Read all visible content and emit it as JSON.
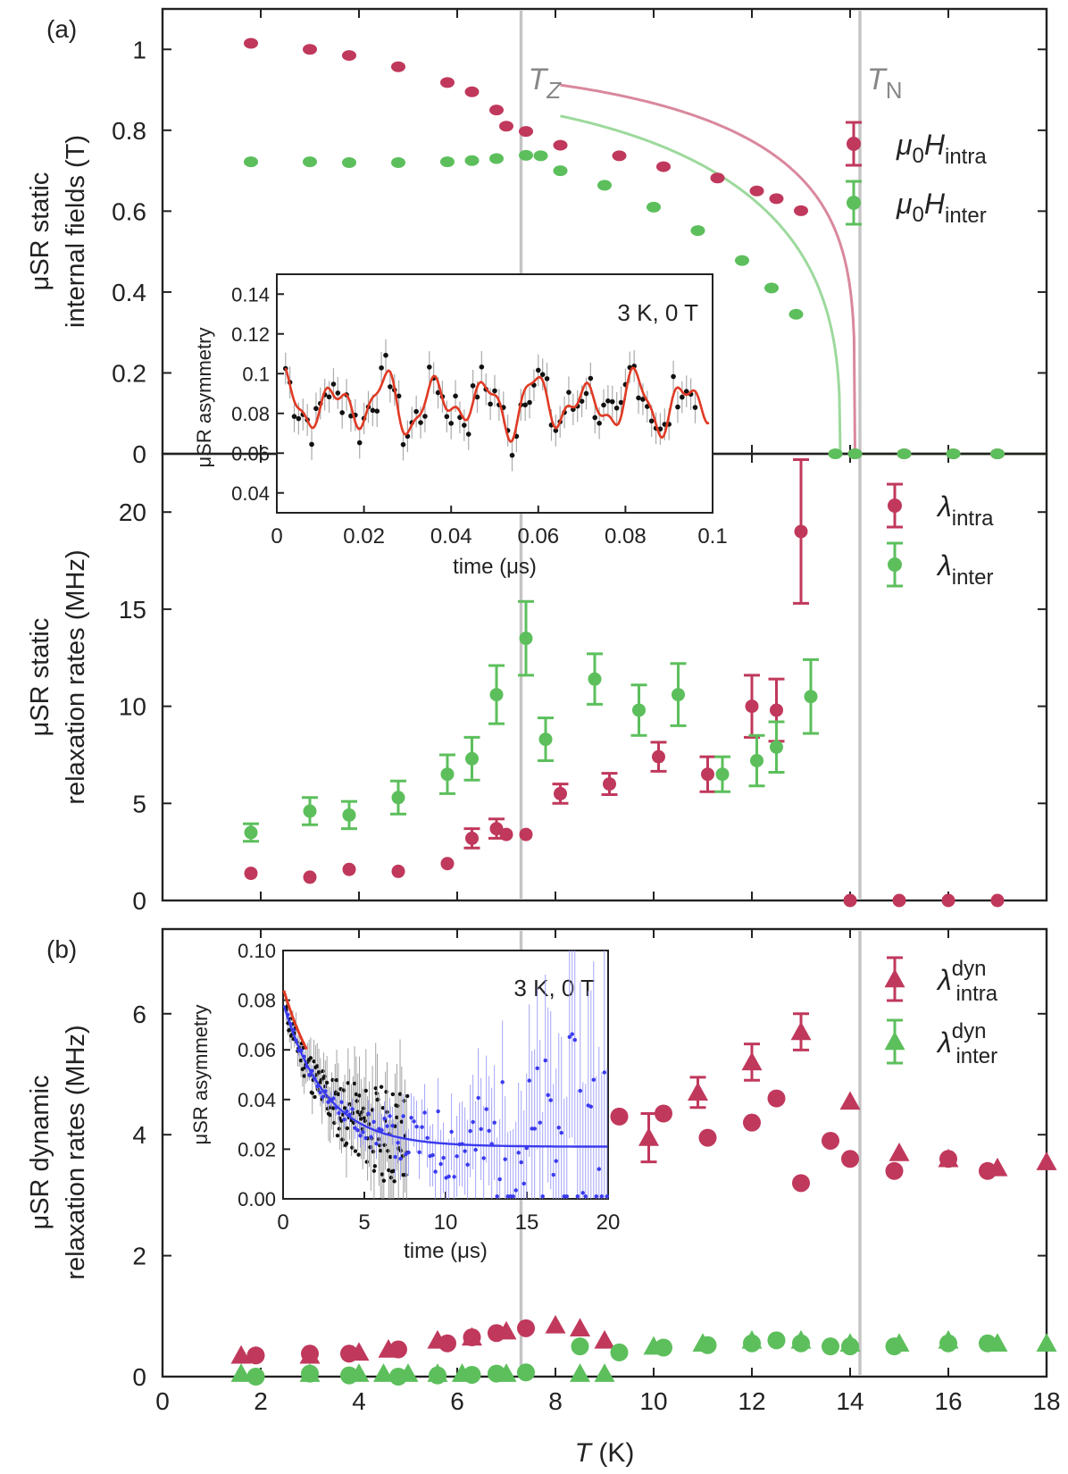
{
  "chart_data": [
    {
      "panel": "a-top",
      "type": "scatter",
      "panel_label": "(a)",
      "ylabel_lines": [
        "μSR static",
        "internal fields (T)"
      ],
      "xlim": [
        0,
        18
      ],
      "ylim": [
        0,
        1.1
      ],
      "yticks": [
        0,
        0.2,
        0.4,
        0.6,
        0.8,
        1
      ],
      "ytick_labels": [
        "0",
        "0.2",
        "0.4",
        "0.6",
        "0.8",
        "1"
      ],
      "vlines": [
        {
          "x": 7.3,
          "label": "T",
          "sub": "Z"
        },
        {
          "x": 14.2,
          "label": "T",
          "sub": "N"
        }
      ],
      "legend": [
        {
          "pre": "μ",
          "sub0": "0",
          "main": "H",
          "sub": "intra",
          "color": "#c0385c"
        },
        {
          "pre": "μ",
          "sub0": "0",
          "main": "H",
          "sub": "inter",
          "color": "#5cbf5c"
        }
      ],
      "series": [
        {
          "name": "μ0H intra",
          "color": "#c0385c",
          "x": [
            1.8,
            3.0,
            3.8,
            4.8,
            5.8,
            6.3,
            6.8,
            7.0,
            7.4,
            8.1,
            9.3,
            10.2,
            11.3,
            12.1,
            12.5,
            13.0,
            14.1,
            15.1,
            16.1,
            17.0
          ],
          "y": [
            1.015,
            1.0,
            0.985,
            0.957,
            0.918,
            0.895,
            0.85,
            0.81,
            0.797,
            0.763,
            0.737,
            0.71,
            0.682,
            0.65,
            0.631,
            0.601,
            0.0,
            0.0,
            0.0,
            0.0
          ]
        },
        {
          "name": "μ0H inter",
          "color": "#5cbf5c",
          "x": [
            1.8,
            3.0,
            3.8,
            4.8,
            5.8,
            6.3,
            6.8,
            7.4,
            7.7,
            8.1,
            9.0,
            10.0,
            10.9,
            11.8,
            12.4,
            12.9,
            13.7,
            14.1,
            15.1,
            16.1,
            17.0
          ],
          "y": [
            0.722,
            0.722,
            0.72,
            0.72,
            0.722,
            0.725,
            0.73,
            0.738,
            0.737,
            0.7,
            0.664,
            0.61,
            0.552,
            0.478,
            0.41,
            0.345,
            0.0,
            0.0,
            0.0,
            0.0,
            0.0
          ]
        }
      ]
    },
    {
      "panel": "a-bottom",
      "type": "scatter",
      "ylabel_lines": [
        "μSR static",
        "relaxation rates (MHz)"
      ],
      "xlim": [
        0,
        18
      ],
      "ylim": [
        0,
        23
      ],
      "yticks": [
        0,
        5,
        10,
        15,
        20
      ],
      "ytick_labels": [
        "0",
        "5",
        "10",
        "15",
        "20"
      ],
      "legend": [
        {
          "pre": "λ",
          "sub": "intra",
          "color": "#c0385c"
        },
        {
          "pre": "λ",
          "sub": "inter",
          "color": "#5cbf5c"
        }
      ],
      "series": [
        {
          "name": "λ intra",
          "color": "#c0385c",
          "x": [
            1.8,
            3.0,
            3.8,
            4.8,
            5.8,
            6.3,
            6.8,
            7.0,
            7.4,
            8.1,
            9.1,
            10.1,
            11.1,
            12.0,
            12.5,
            13.0,
            14.0,
            15.0,
            16.0,
            17.0
          ],
          "y": [
            1.4,
            1.2,
            1.6,
            1.5,
            1.9,
            3.2,
            3.7,
            3.4,
            3.4,
            5.5,
            6.0,
            7.4,
            6.5,
            10.0,
            9.8,
            19.0,
            0.0,
            0.0,
            0.0,
            0.0
          ],
          "err": [
            0.25,
            0.25,
            0.25,
            0.25,
            0.25,
            0.5,
            0.5,
            0.3,
            0.3,
            0.5,
            0.55,
            0.75,
            0.9,
            1.6,
            1.6,
            3.7,
            0,
            0,
            0,
            0
          ]
        },
        {
          "name": "λ inter",
          "color": "#5cbf5c",
          "x": [
            1.8,
            3.0,
            3.8,
            4.8,
            5.8,
            6.3,
            6.8,
            7.4,
            7.8,
            8.8,
            9.7,
            10.5,
            11.4,
            12.1,
            12.5,
            13.2
          ],
          "y": [
            3.5,
            4.6,
            4.4,
            5.3,
            6.5,
            7.3,
            10.6,
            13.5,
            8.3,
            11.4,
            9.8,
            10.6,
            6.5,
            7.2,
            7.9,
            10.5
          ],
          "err": [
            0.45,
            0.7,
            0.7,
            0.85,
            1.0,
            1.1,
            1.5,
            1.9,
            1.1,
            1.3,
            1.3,
            1.6,
            0.9,
            1.3,
            1.3,
            1.9
          ]
        }
      ],
      "inset": {
        "label": "3 K, 0 T",
        "xlabel": "time (μs)",
        "ylabel": "μSR asymmetry",
        "xlim": [
          0,
          0.1
        ],
        "ylim": [
          0.03,
          0.15
        ],
        "xticks": [
          0,
          0.02,
          0.04,
          0.06,
          0.08,
          0.1
        ],
        "xtick_labels": [
          "0",
          "0.02",
          "0.04",
          "0.06",
          "0.08",
          "0.1"
        ],
        "yticks": [
          0.04,
          0.06,
          0.08,
          0.1,
          0.12,
          0.14
        ],
        "ytick_labels": [
          "0.04",
          "0.06",
          "0.08",
          "0.1",
          "0.12",
          "0.14"
        ],
        "data_color": "#111111",
        "fit_color": "#e03a24"
      }
    },
    {
      "panel": "b",
      "type": "scatter",
      "panel_label": "(b)",
      "ylabel_lines": [
        "μSR dynamic",
        "relaxation rates (MHz)"
      ],
      "xlabel_italic": "T",
      "xlabel_rest": " (K)",
      "xlim": [
        0,
        18
      ],
      "ylim": [
        0,
        7.4
      ],
      "xticks": [
        0,
        2,
        4,
        6,
        8,
        10,
        12,
        14,
        16,
        18
      ],
      "xtick_labels": [
        "0",
        "2",
        "4",
        "6",
        "8",
        "10",
        "12",
        "14",
        "16",
        "18"
      ],
      "yticks": [
        0,
        2,
        4,
        6
      ],
      "ytick_labels": [
        "0",
        "2",
        "4",
        "6"
      ],
      "legend": [
        {
          "pre": "λ",
          "sup": "dyn",
          "sub": "intra",
          "color": "#c0385c"
        },
        {
          "pre": "λ",
          "sup": "dyn",
          "sub": "inter",
          "color": "#5cbf5c"
        }
      ],
      "series": [
        {
          "name": "λdyn intra (circles)",
          "color": "#c0385c",
          "marker": "circle",
          "x": [
            1.9,
            3.0,
            3.8,
            4.8,
            5.8,
            6.3,
            6.8,
            7.4,
            9.3,
            10.2,
            11.1,
            12.0,
            12.5,
            13.0,
            13.6,
            14.0,
            14.9,
            16.0,
            16.8
          ],
          "y": [
            0.35,
            0.38,
            0.38,
            0.45,
            0.55,
            0.65,
            0.72,
            0.8,
            4.3,
            4.35,
            3.95,
            4.2,
            4.6,
            3.2,
            3.9,
            3.6,
            3.4,
            3.6,
            3.4
          ]
        },
        {
          "name": "λdyn intra (triangles)",
          "color": "#c0385c",
          "marker": "triangle",
          "x": [
            1.6,
            3.0,
            4.0,
            4.6,
            5.6,
            6.3,
            7.0,
            8.0,
            8.5,
            9.0,
            9.9,
            10.9,
            12.0,
            13.0,
            14.0,
            15.0,
            16.0,
            17.0,
            18.0
          ],
          "y": [
            0.35,
            0.35,
            0.4,
            0.45,
            0.6,
            0.65,
            0.75,
            0.85,
            0.8,
            0.6,
            3.95,
            4.7,
            5.2,
            5.7,
            4.55,
            3.7,
            3.6,
            3.45,
            3.55
          ],
          "err": [
            0,
            0,
            0,
            0,
            0,
            0,
            0,
            0,
            0,
            0,
            0.4,
            0.25,
            0.3,
            0.3,
            0,
            0,
            0,
            0,
            0
          ]
        },
        {
          "name": "λdyn inter (circles)",
          "color": "#5cbf5c",
          "marker": "circle",
          "x": [
            1.9,
            3.0,
            3.8,
            4.8,
            5.6,
            6.3,
            6.8,
            7.4,
            8.5,
            9.3,
            10.2,
            11.1,
            12.0,
            12.5,
            13.0,
            13.6,
            14.0,
            14.9,
            16.0,
            16.8
          ],
          "y": [
            0.0,
            0.05,
            0.02,
            0.0,
            0.02,
            0.03,
            0.05,
            0.07,
            0.5,
            0.4,
            0.48,
            0.52,
            0.55,
            0.6,
            0.55,
            0.5,
            0.5,
            0.5,
            0.55,
            0.55
          ]
        },
        {
          "name": "λdyn inter (triangles)",
          "color": "#5cbf5c",
          "marker": "triangle",
          "x": [
            1.6,
            3.0,
            4.0,
            4.5,
            5.0,
            5.6,
            6.1,
            7.0,
            8.5,
            9.0,
            10.0,
            11.0,
            12.0,
            13.0,
            14.0,
            15.0,
            16.0,
            17.0,
            18.0
          ],
          "y": [
            0.05,
            0.05,
            0.05,
            0.05,
            0.05,
            0.05,
            0.05,
            0.05,
            0.05,
            0.05,
            0.5,
            0.55,
            0.6,
            0.6,
            0.55,
            0.55,
            0.6,
            0.55,
            0.55
          ]
        }
      ],
      "inset": {
        "label": "3 K, 0 T",
        "xlabel": "time (μs)",
        "ylabel": "μSR asymmetry",
        "xlim": [
          0,
          20
        ],
        "ylim": [
          0,
          0.1
        ],
        "xticks": [
          0,
          5,
          10,
          15,
          20
        ],
        "xtick_labels": [
          "0",
          "5",
          "10",
          "15",
          "20"
        ],
        "yticks": [
          0,
          0.02,
          0.04,
          0.06,
          0.08,
          0.1
        ],
        "ytick_labels": [
          "0.00",
          "0.02",
          "0.04",
          "0.06",
          "0.08",
          "0.10"
        ],
        "data_color": "#111111",
        "data_color_2": "#3a3af0",
        "fit_color": "#3a3af0",
        "fit_color_2": "#e03a24"
      }
    }
  ]
}
